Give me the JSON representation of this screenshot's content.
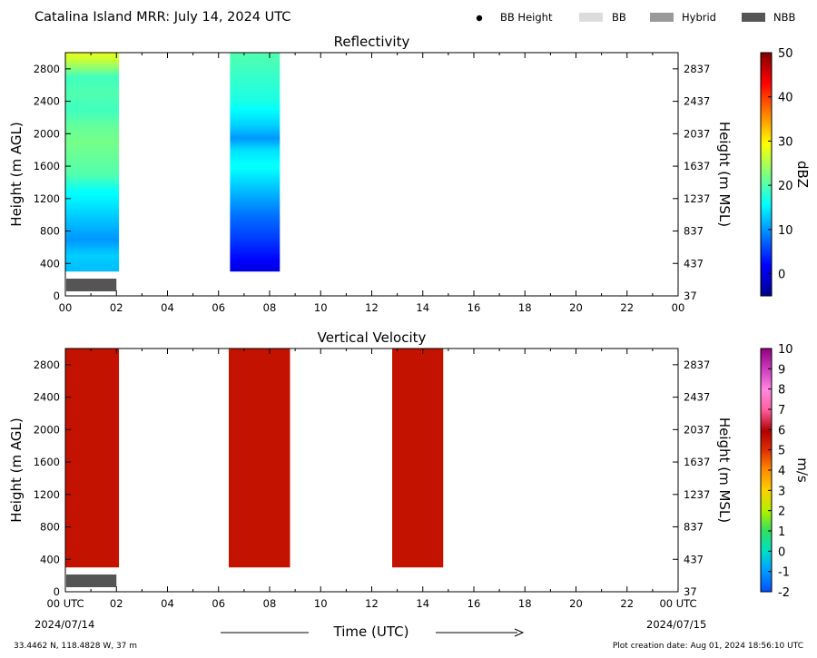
{
  "header": {
    "title": "Catalina Island MRR:  July 14, 2024 UTC",
    "legend": [
      {
        "label": "BB Height",
        "kind": "dot",
        "color": "#000000"
      },
      {
        "label": "BB",
        "kind": "patch",
        "color": "#dcdcdc"
      },
      {
        "label": "Hybrid",
        "kind": "patch",
        "color": "#999999"
      },
      {
        "label": "NBB",
        "kind": "patch",
        "color": "#555555"
      }
    ]
  },
  "footer": {
    "coords": "33.4462 N, 118.4828 W, 37 m",
    "creation": "Plot creation date: Aug 01, 2024 18:56:10 UTC",
    "x_title": "Time (UTC)",
    "start_date": "2024/07/14",
    "end_date": "2024/07/15"
  },
  "chart_data": [
    {
      "type": "heatmap",
      "title": "Reflectivity",
      "ylabel": "Height (m AGL)",
      "ylabel_right": "Height (m MSL)",
      "xlim": [
        0,
        24
      ],
      "ylim": [
        0,
        3000
      ],
      "x_ticks": [
        "00",
        "02",
        "04",
        "06",
        "08",
        "10",
        "12",
        "14",
        "16",
        "18",
        "20",
        "22",
        "00"
      ],
      "y_ticks": [
        "0",
        "400",
        "800",
        "1200",
        "1600",
        "2000",
        "2400",
        "2800"
      ],
      "y_ticks_right": [
        "37",
        "437",
        "837",
        "1237",
        "1637",
        "2037",
        "2437",
        "2837"
      ],
      "colorbar": {
        "label": "dBZ",
        "range": [
          -5,
          50
        ],
        "ticks": [
          "0",
          "10",
          "20",
          "30",
          "40",
          "50"
        ],
        "tick_values": [
          0,
          10,
          20,
          30,
          40,
          50
        ]
      },
      "data_blocks": [
        {
          "x_start": 0.0,
          "x_end": 2.1,
          "y_bottom": 300,
          "y_top": 3000,
          "profile": [
            [
              300,
              12
            ],
            [
              500,
              13
            ],
            [
              700,
              10
            ],
            [
              900,
              12
            ],
            [
              1100,
              14
            ],
            [
              1300,
              16
            ],
            [
              1500,
              20
            ],
            [
              1700,
              21
            ],
            [
              1900,
              22
            ],
            [
              2100,
              21
            ],
            [
              2300,
              19
            ],
            [
              2500,
              20
            ],
            [
              2700,
              19
            ],
            [
              2900,
              26
            ],
            [
              3000,
              28
            ]
          ]
        },
        {
          "x_start": 6.45,
          "x_end": 8.4,
          "y_bottom": 300,
          "y_top": 3000,
          "profile": [
            [
              300,
              0
            ],
            [
              450,
              2
            ],
            [
              700,
              5
            ],
            [
              1000,
              8
            ],
            [
              1300,
              12
            ],
            [
              1600,
              16
            ],
            [
              1800,
              14
            ],
            [
              1950,
              10
            ],
            [
              2100,
              13
            ],
            [
              2400,
              17
            ],
            [
              2800,
              19
            ],
            [
              3000,
              20
            ]
          ]
        }
      ],
      "bright_band_type": {
        "label": "NBB",
        "x_start": 0.0,
        "x_end": 2.0
      }
    },
    {
      "type": "heatmap",
      "title": "Vertical Velocity",
      "ylabel": "Height (m AGL)",
      "ylabel_right": "Height (m MSL)",
      "xlabel": "Time (UTC)",
      "xlim": [
        0,
        24
      ],
      "ylim": [
        0,
        3000
      ],
      "x_ticks": [
        "00 UTC",
        "02",
        "04",
        "06",
        "08",
        "10",
        "12",
        "14",
        "16",
        "18",
        "20",
        "22",
        "00 UTC"
      ],
      "y_ticks": [
        "0",
        "400",
        "800",
        "1200",
        "1600",
        "2000",
        "2400",
        "2800"
      ],
      "y_ticks_right": [
        "37",
        "437",
        "837",
        "1237",
        "1637",
        "2037",
        "2437",
        "2837"
      ],
      "colorbar": {
        "label": "m/s",
        "range": [
          -2,
          10
        ],
        "ticks": [
          "-2",
          "-1",
          "0",
          "1",
          "2",
          "3",
          "4",
          "5",
          "6",
          "7",
          "8",
          "9",
          "10"
        ],
        "tick_values": [
          -2,
          -1,
          0,
          1,
          2,
          3,
          4,
          5,
          6,
          7,
          8,
          9,
          10
        ]
      },
      "data_blocks": [
        {
          "x_start": 0.0,
          "x_end": 2.1,
          "y_bottom": 300,
          "y_top": 3000,
          "value": 6
        },
        {
          "x_start": 6.4,
          "x_end": 8.8,
          "y_bottom": 300,
          "y_top": 3000,
          "value": 6
        },
        {
          "x_start": 12.8,
          "x_end": 14.8,
          "y_bottom": 300,
          "y_top": 3000,
          "value": 6
        }
      ],
      "bright_band_type": {
        "label": "NBB",
        "x_start": 0.0,
        "x_end": 2.0
      }
    }
  ]
}
